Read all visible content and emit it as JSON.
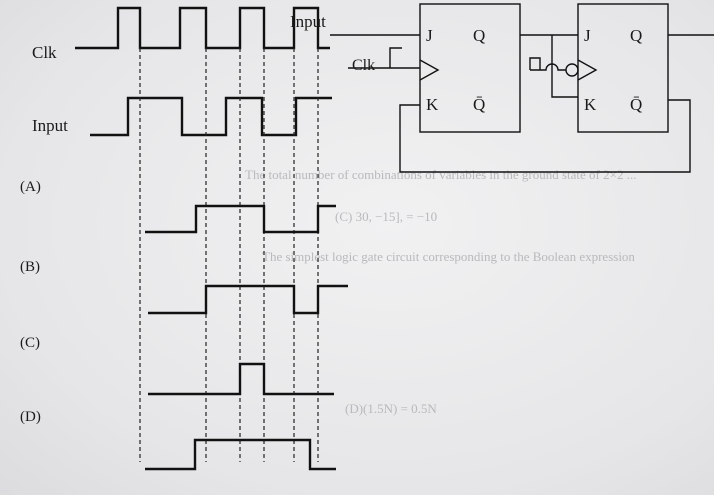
{
  "circuit": {
    "input_label": "Input",
    "clk_label": "Clk",
    "ff1": {
      "j": "J",
      "k": "K",
      "q": "Q",
      "qbar": "Q̄"
    },
    "ff2": {
      "j": "J",
      "k": "K",
      "q": "Q",
      "qbar": "Q̄"
    }
  },
  "waveforms": {
    "clk_label": "Clk",
    "input_label": "Input",
    "options": [
      "(A)",
      "(B)",
      "(C)",
      "(D)"
    ]
  },
  "background_text": [
    "The total number of combinations of variables in the ground state of 2×2 ...",
    "(C) 30, −15], = −10",
    "The simplest logic gate circuit corresponding to the Boolean expression",
    "(D)(1.5N) = 0.5N"
  ]
}
